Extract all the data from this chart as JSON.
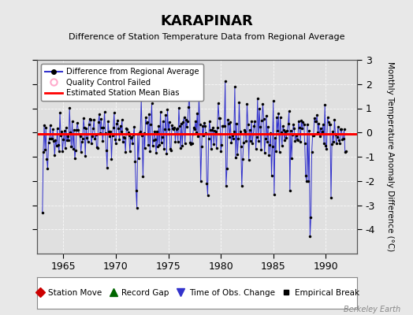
{
  "title": "KARAPINAR",
  "subtitle": "Difference of Station Temperature Data from Regional Average",
  "ylabel_right": "Monthly Temperature Anomaly Difference (°C)",
  "xlim": [
    1962.5,
    1993.0
  ],
  "ylim": [
    -5,
    3
  ],
  "yticks": [
    -4,
    -3,
    -2,
    -1,
    0,
    1,
    2,
    3
  ],
  "xticks": [
    1965,
    1970,
    1975,
    1980,
    1985,
    1990
  ],
  "background_color": "#e8e8e8",
  "plot_bg_color": "#e0e0e0",
  "line_color": "#3333cc",
  "bias_color": "#ff0000",
  "marker_color": "#000000",
  "watermark": "Berkeley Earth",
  "mean_bias": -0.05,
  "seed": 42,
  "n_points": 348,
  "start_year": 1963.0
}
